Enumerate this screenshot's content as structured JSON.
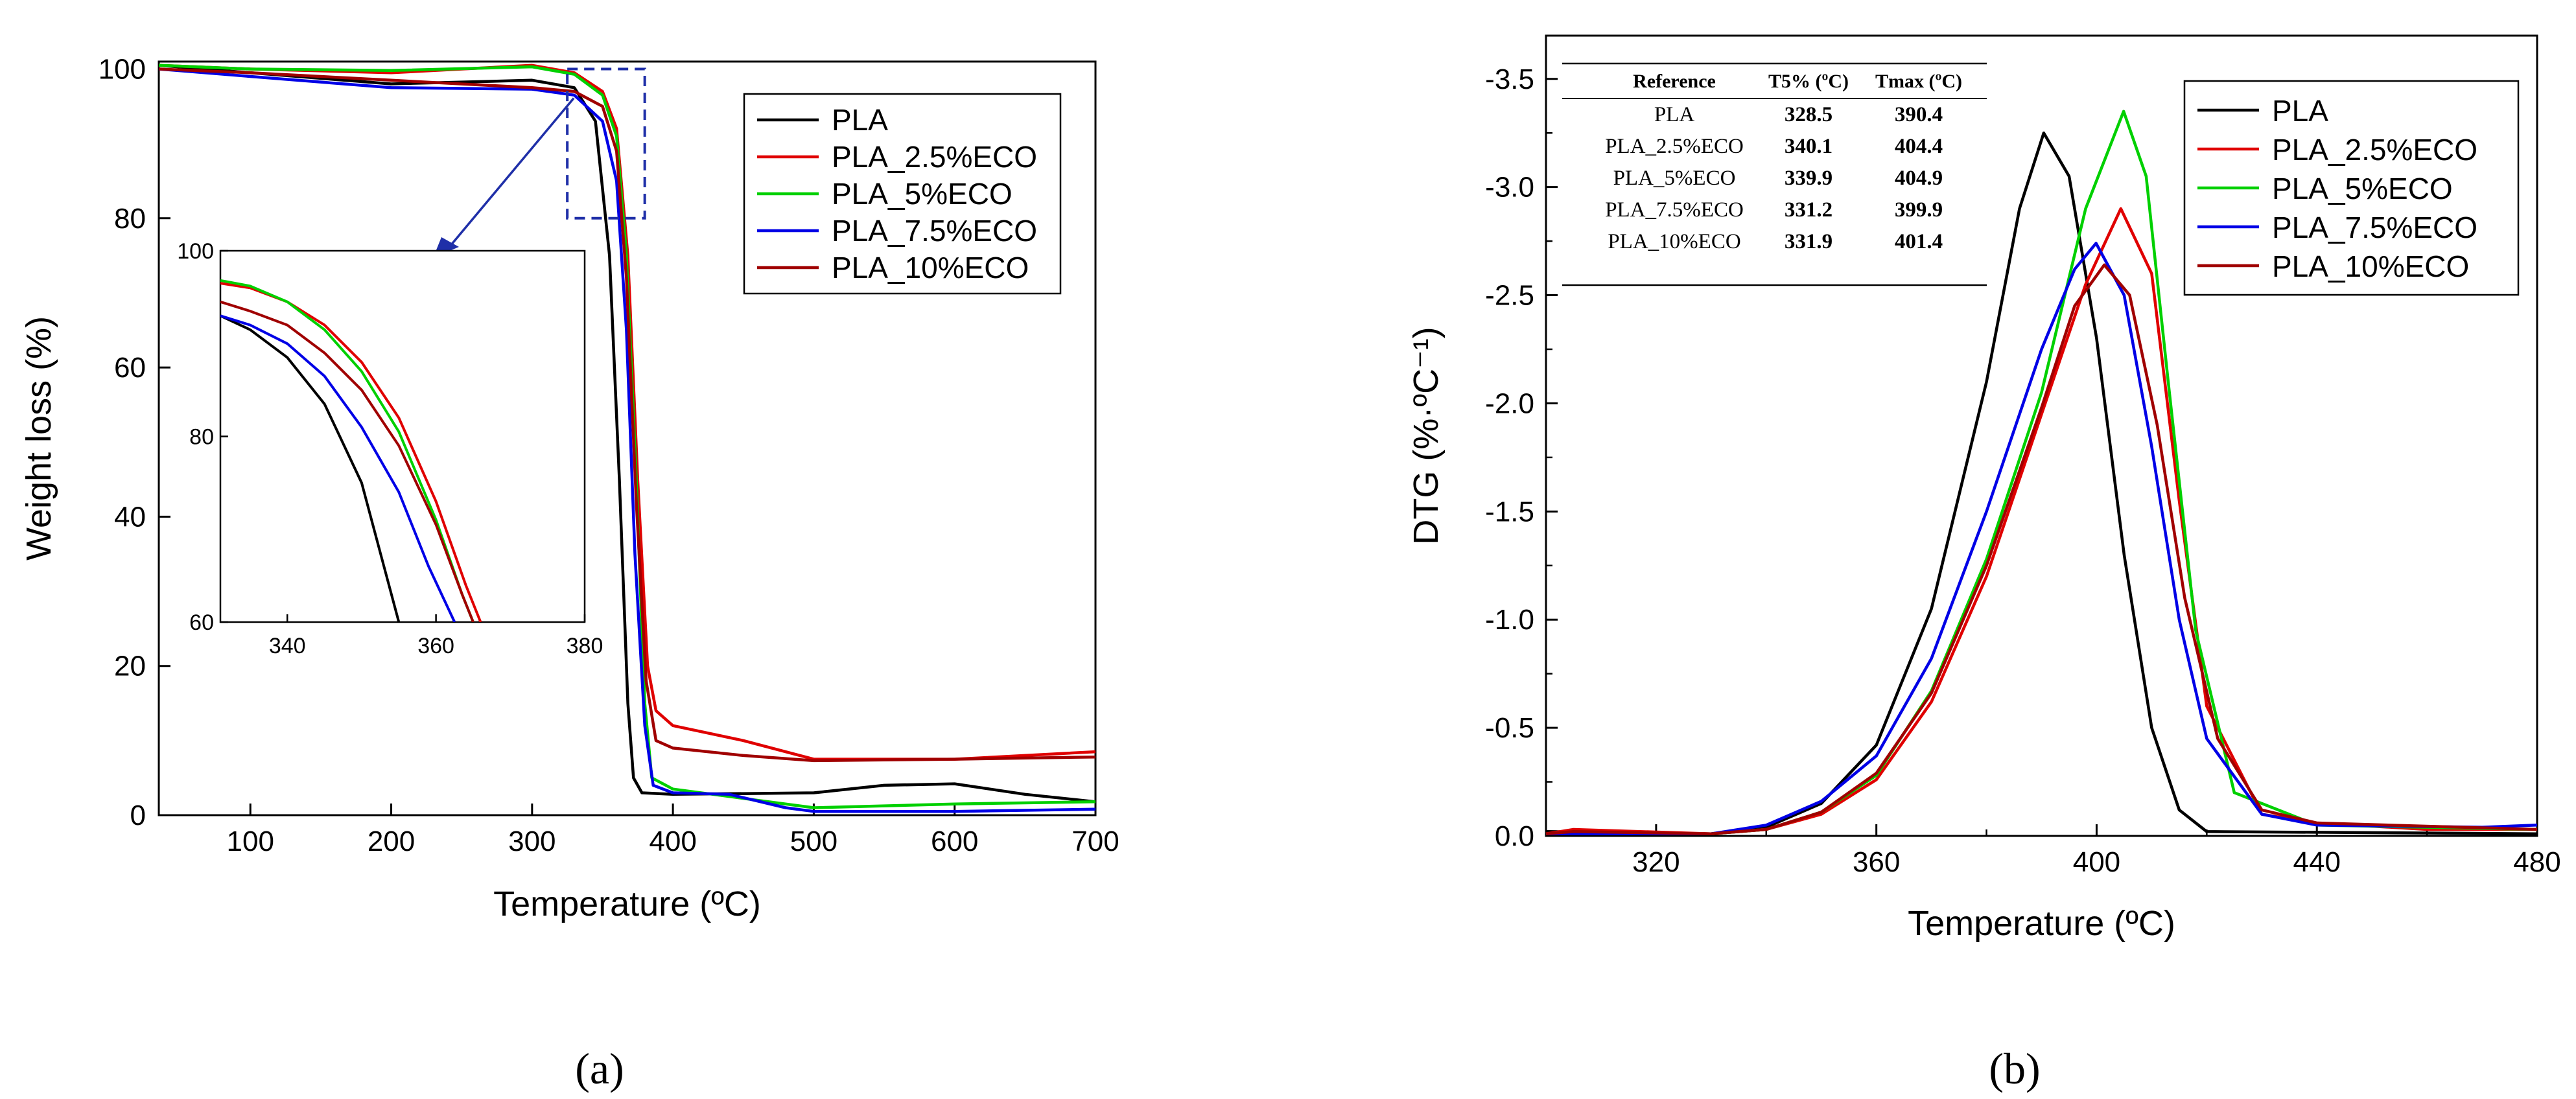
{
  "chart_data": [
    {
      "type": "line",
      "panel_label": "a",
      "xlabel": "Temperature (ºC)",
      "ylabel": "Weight loss (%)",
      "xlim": [
        35,
        700
      ],
      "ylim": [
        0,
        101
      ],
      "x_ticks": [
        100,
        200,
        300,
        400,
        500,
        600,
        700
      ],
      "y_ticks": [
        0,
        20,
        40,
        60,
        80,
        100
      ],
      "legend_position": "top-right",
      "series": [
        {
          "name": "PLA",
          "color": "#000000",
          "points": [
            [
              35,
              100.5
            ],
            [
              100,
              99.5
            ],
            [
              200,
              98
            ],
            [
              300,
              98.5
            ],
            [
              330,
              97.5
            ],
            [
              345,
              93
            ],
            [
              355,
              75
            ],
            [
              362,
              45
            ],
            [
              368,
              15
            ],
            [
              372,
              5
            ],
            [
              378,
              3
            ],
            [
              400,
              2.8
            ],
            [
              500,
              3
            ],
            [
              550,
              4
            ],
            [
              600,
              4.2
            ],
            [
              650,
              2.8
            ],
            [
              700,
              1.8
            ]
          ]
        },
        {
          "name": "PLA_2.5%ECO",
          "color": "#e00000",
          "points": [
            [
              35,
              100.5
            ],
            [
              100,
              100
            ],
            [
              200,
              99.5
            ],
            [
              300,
              100.5
            ],
            [
              330,
              99.5
            ],
            [
              350,
              97
            ],
            [
              360,
              92
            ],
            [
              368,
              75
            ],
            [
              375,
              45
            ],
            [
              382,
              20
            ],
            [
              388,
              14
            ],
            [
              400,
              12
            ],
            [
              450,
              10
            ],
            [
              500,
              7.5
            ],
            [
              600,
              7.5
            ],
            [
              700,
              8.5
            ]
          ]
        },
        {
          "name": "PLA_5%ECO",
          "color": "#00d000",
          "points": [
            [
              35,
              100.5
            ],
            [
              100,
              100
            ],
            [
              200,
              99.8
            ],
            [
              300,
              100.3
            ],
            [
              330,
              99.3
            ],
            [
              350,
              96.5
            ],
            [
              360,
              91
            ],
            [
              367,
              75
            ],
            [
              374,
              45
            ],
            [
              380,
              15
            ],
            [
              385,
              5
            ],
            [
              400,
              3.5
            ],
            [
              440,
              2.5
            ],
            [
              500,
              1
            ],
            [
              600,
              1.5
            ],
            [
              700,
              1.8
            ]
          ]
        },
        {
          "name": "PLA_7.5%ECO",
          "color": "#0000e6",
          "points": [
            [
              35,
              100
            ],
            [
              100,
              99
            ],
            [
              200,
              97.5
            ],
            [
              300,
              97.3
            ],
            [
              330,
              96.5
            ],
            [
              350,
              93
            ],
            [
              360,
              85
            ],
            [
              367,
              65
            ],
            [
              373,
              35
            ],
            [
              380,
              12
            ],
            [
              386,
              4
            ],
            [
              400,
              3
            ],
            [
              440,
              2.8
            ],
            [
              480,
              1
            ],
            [
              500,
              0.5
            ],
            [
              600,
              0.5
            ],
            [
              700,
              0.8
            ]
          ]
        },
        {
          "name": "PLA_10%ECO",
          "color": "#a00000",
          "points": [
            [
              35,
              100
            ],
            [
              100,
              99.5
            ],
            [
              200,
              98.5
            ],
            [
              300,
              97.5
            ],
            [
              330,
              97
            ],
            [
              350,
              95
            ],
            [
              360,
              89
            ],
            [
              367,
              72
            ],
            [
              374,
              42
            ],
            [
              381,
              18
            ],
            [
              388,
              10
            ],
            [
              400,
              9
            ],
            [
              450,
              8
            ],
            [
              500,
              7.3
            ],
            [
              600,
              7.5
            ],
            [
              700,
              7.8
            ]
          ]
        }
      ],
      "highlight_box": {
        "x": [
          325,
          380
        ],
        "y": [
          80,
          100
        ]
      },
      "inset": {
        "xlim": [
          331,
          380
        ],
        "ylim": [
          60,
          100
        ],
        "x_ticks": [
          340,
          360,
          380
        ],
        "y_ticks": [
          60,
          80,
          100
        ],
        "series": [
          {
            "name": "PLA",
            "color": "#000000",
            "points": [
              [
                331,
                93
              ],
              [
                335,
                91.5
              ],
              [
                340,
                88.5
              ],
              [
                345,
                83.5
              ],
              [
                350,
                75
              ],
              [
                353,
                66
              ],
              [
                355,
                60
              ]
            ]
          },
          {
            "name": "PLA_2.5%ECO",
            "color": "#e00000",
            "points": [
              [
                331,
                96.5
              ],
              [
                335,
                96
              ],
              [
                340,
                94.5
              ],
              [
                345,
                92
              ],
              [
                350,
                88
              ],
              [
                355,
                82
              ],
              [
                360,
                73
              ],
              [
                364,
                64
              ],
              [
                366,
                60
              ]
            ]
          },
          {
            "name": "PLA_5%ECO",
            "color": "#00d000",
            "points": [
              [
                331,
                96.8
              ],
              [
                335,
                96.2
              ],
              [
                340,
                94.5
              ],
              [
                345,
                91.5
              ],
              [
                350,
                87
              ],
              [
                355,
                80.5
              ],
              [
                360,
                71
              ],
              [
                363.5,
                63
              ],
              [
                365,
                60
              ]
            ]
          },
          {
            "name": "PLA_7.5%ECO",
            "color": "#0000e6",
            "points": [
              [
                331,
                93
              ],
              [
                335,
                92
              ],
              [
                340,
                90
              ],
              [
                345,
                86.5
              ],
              [
                350,
                81
              ],
              [
                355,
                74
              ],
              [
                359,
                66
              ],
              [
                362.5,
                60
              ]
            ]
          },
          {
            "name": "PLA_10%ECO",
            "color": "#a00000",
            "points": [
              [
                331,
                94.5
              ],
              [
                335,
                93.5
              ],
              [
                340,
                92
              ],
              [
                345,
                89
              ],
              [
                350,
                85
              ],
              [
                355,
                79
              ],
              [
                360,
                70.5
              ],
              [
                363.5,
                63
              ],
              [
                365,
                60
              ]
            ]
          }
        ]
      }
    },
    {
      "type": "line",
      "panel_label": "b",
      "xlabel": "Temperature (ºC)",
      "ylabel": "DTG (%·ºC⁻¹)",
      "y_reversed": true,
      "xlim": [
        300,
        480
      ],
      "ylim": [
        0,
        -3.7
      ],
      "x_ticks": [
        320,
        360,
        400,
        440,
        480
      ],
      "y_ticks": [
        "0.0",
        "-0.5",
        "-1.0",
        "-1.5",
        "-2.0",
        "-2.5",
        "-3.0",
        "-3.5"
      ],
      "legend_position": "top-right",
      "series": [
        {
          "name": "PLA",
          "color": "#000000",
          "points": [
            [
              300,
              -0.02
            ],
            [
              330,
              -0.01
            ],
            [
              340,
              -0.04
            ],
            [
              350,
              -0.15
            ],
            [
              360,
              -0.42
            ],
            [
              370,
              -1.05
            ],
            [
              380,
              -2.1
            ],
            [
              386,
              -2.9
            ],
            [
              390.4,
              -3.25
            ],
            [
              395,
              -3.05
            ],
            [
              400,
              -2.3
            ],
            [
              405,
              -1.3
            ],
            [
              410,
              -0.5
            ],
            [
              415,
              -0.12
            ],
            [
              420,
              -0.02
            ],
            [
              480,
              -0.01
            ]
          ]
        },
        {
          "name": "PLA_2.5%ECO",
          "color": "#e00000",
          "points": [
            [
              300,
              -0.01
            ],
            [
              305,
              -0.03
            ],
            [
              330,
              -0.01
            ],
            [
              340,
              -0.03
            ],
            [
              350,
              -0.1
            ],
            [
              360,
              -0.26
            ],
            [
              370,
              -0.62
            ],
            [
              380,
              -1.2
            ],
            [
              390,
              -1.95
            ],
            [
              398,
              -2.55
            ],
            [
              404.4,
              -2.9
            ],
            [
              410,
              -2.6
            ],
            [
              415,
              -1.55
            ],
            [
              420,
              -0.6
            ],
            [
              430,
              -0.1
            ],
            [
              440,
              -0.06
            ],
            [
              460,
              -0.03
            ],
            [
              480,
              -0.03
            ]
          ]
        },
        {
          "name": "PLA_5%ECO",
          "color": "#00d000",
          "points": [
            [
              300,
              -0.01
            ],
            [
              330,
              -0.01
            ],
            [
              340,
              -0.03
            ],
            [
              350,
              -0.11
            ],
            [
              360,
              -0.28
            ],
            [
              370,
              -0.67
            ],
            [
              380,
              -1.28
            ],
            [
              390,
              -2.05
            ],
            [
              398,
              -2.9
            ],
            [
              404.9,
              -3.35
            ],
            [
              409,
              -3.05
            ],
            [
              413,
              -2.1
            ],
            [
              418,
              -0.95
            ],
            [
              425,
              -0.2
            ],
            [
              440,
              -0.05
            ],
            [
              480,
              -0.03
            ]
          ]
        },
        {
          "name": "PLA_7.5%ECO",
          "color": "#0000e6",
          "points": [
            [
              300,
              -0.01
            ],
            [
              330,
              -0.01
            ],
            [
              340,
              -0.05
            ],
            [
              350,
              -0.16
            ],
            [
              360,
              -0.37
            ],
            [
              370,
              -0.82
            ],
            [
              380,
              -1.5
            ],
            [
              390,
              -2.25
            ],
            [
              396,
              -2.62
            ],
            [
              399.9,
              -2.74
            ],
            [
              405,
              -2.5
            ],
            [
              410,
              -1.8
            ],
            [
              415,
              -1.0
            ],
            [
              420,
              -0.45
            ],
            [
              430,
              -0.1
            ],
            [
              440,
              -0.05
            ],
            [
              470,
              -0.04
            ],
            [
              480,
              -0.05
            ]
          ]
        },
        {
          "name": "PLA_10%ECO",
          "color": "#a00000",
          "points": [
            [
              300,
              -0.01
            ],
            [
              305,
              -0.02
            ],
            [
              330,
              -0.01
            ],
            [
              340,
              -0.03
            ],
            [
              350,
              -0.11
            ],
            [
              360,
              -0.29
            ],
            [
              370,
              -0.66
            ],
            [
              380,
              -1.25
            ],
            [
              390,
              -1.98
            ],
            [
              396,
              -2.45
            ],
            [
              401.4,
              -2.64
            ],
            [
              406,
              -2.5
            ],
            [
              411,
              -1.9
            ],
            [
              416,
              -1.1
            ],
            [
              422,
              -0.45
            ],
            [
              430,
              -0.12
            ],
            [
              440,
              -0.06
            ],
            [
              480,
              -0.03
            ]
          ]
        }
      ],
      "table": {
        "headers": [
          "Reference",
          "T5% (ºC)",
          "Tmax (ºC)"
        ],
        "rows": [
          [
            "PLA",
            "328.5",
            "390.4"
          ],
          [
            "PLA_2.5%ECO",
            "340.1",
            "404.4"
          ],
          [
            "PLA_5%ECO",
            "339.9",
            "404.9"
          ],
          [
            "PLA_7.5%ECO",
            "331.2",
            "399.9"
          ],
          [
            "PLA_10%ECO",
            "331.9",
            "401.4"
          ]
        ]
      }
    }
  ],
  "captions": {
    "a": "(a)",
    "b": "(b)"
  }
}
